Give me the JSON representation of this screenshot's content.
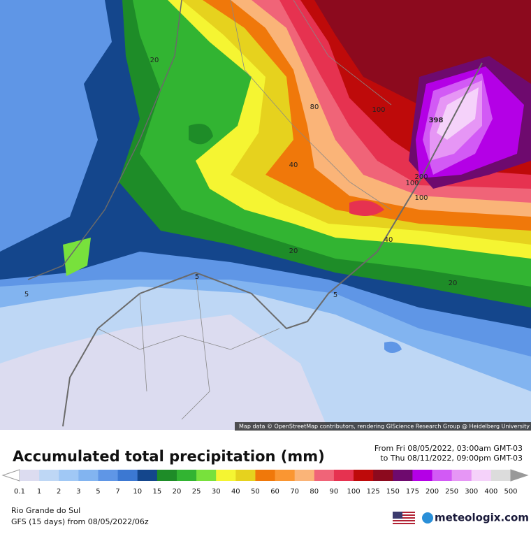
{
  "map": {
    "attribution": "Map data © OpenStreetMap contributors, rendering GIScience Research Group @ Heidelberg University",
    "contour_labels": [
      "20",
      "80",
      "100",
      "398",
      "40",
      "200",
      "100",
      "100",
      "40",
      "20",
      "20",
      "5",
      "5",
      "5"
    ]
  },
  "header": {
    "title": "Accumulated total precipitation (mm)",
    "from": "From Fri 08/05/2022, 03:00am GMT-03",
    "to": "to Thu 08/11/2022, 09:00pm GMT-03"
  },
  "legend": {
    "labels": [
      "0.1",
      "1",
      "2",
      "3",
      "5",
      "7",
      "10",
      "15",
      "20",
      "25",
      "30",
      "40",
      "50",
      "60",
      "70",
      "80",
      "90",
      "100",
      "125",
      "150",
      "175",
      "200",
      "250",
      "300",
      "400",
      "500"
    ],
    "colors": [
      "#dcdcf0",
      "#bed7f5",
      "#a0c8f5",
      "#82b4f0",
      "#5f96e6",
      "#3c78d2",
      "#14468c",
      "#1e8c28",
      "#32b432",
      "#78e13c",
      "#f5f532",
      "#e6d21e",
      "#f0780a",
      "#fa9632",
      "#fab478",
      "#f06478",
      "#e63250",
      "#be0a0a",
      "#8c0a1e",
      "#6e0a6e",
      "#b400e6",
      "#d25af5",
      "#e696f5",
      "#f5d2fa",
      "#dcdcdc"
    ]
  },
  "footer": {
    "region": "Rio Grande do Sul",
    "model": "GFS (15 days) from 08/05/2022/06z",
    "brand": "meteologix.com"
  }
}
